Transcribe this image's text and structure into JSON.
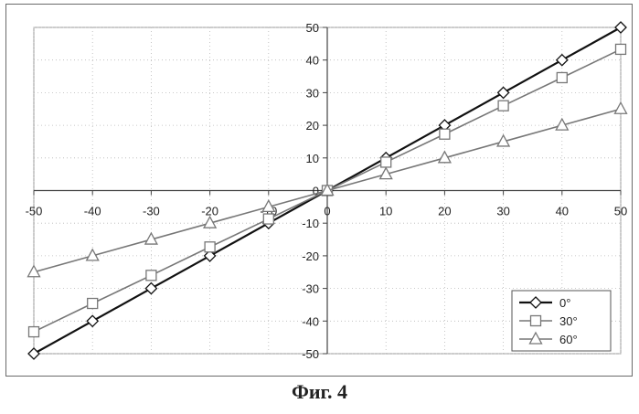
{
  "caption": "Фиг. 4",
  "chart_data": {
    "type": "line",
    "title": "",
    "xlabel": "",
    "ylabel": "",
    "xlim": [
      -50,
      50
    ],
    "ylim": [
      -50,
      50
    ],
    "x_ticks": [
      -50,
      -40,
      -30,
      -20,
      -10,
      0,
      10,
      20,
      30,
      40,
      50
    ],
    "y_ticks": [
      -50,
      -40,
      -30,
      -20,
      -10,
      0,
      10,
      20,
      30,
      40,
      50
    ],
    "grid": "dotted, both axes",
    "legend_position": "lower-right",
    "x": [
      -50,
      -40,
      -30,
      -20,
      -10,
      0,
      10,
      20,
      30,
      40,
      50
    ],
    "series": [
      {
        "name": "0°",
        "marker": "diamond",
        "values": [
          -50,
          -40,
          -30,
          -20,
          -10,
          0,
          10,
          20,
          30,
          40,
          50
        ]
      },
      {
        "name": "30°",
        "marker": "square",
        "values": [
          -43.3,
          -34.6,
          -26,
          -17.3,
          -8.7,
          0,
          8.7,
          17.3,
          26,
          34.6,
          43.3
        ]
      },
      {
        "name": "60°",
        "marker": "triangle",
        "values": [
          -25,
          -20,
          -15,
          -10,
          -5,
          0,
          5,
          10,
          15,
          20,
          25
        ]
      }
    ],
    "colors": {
      "0°": "#111111",
      "30°": "#777777",
      "60°": "#777777"
    }
  }
}
